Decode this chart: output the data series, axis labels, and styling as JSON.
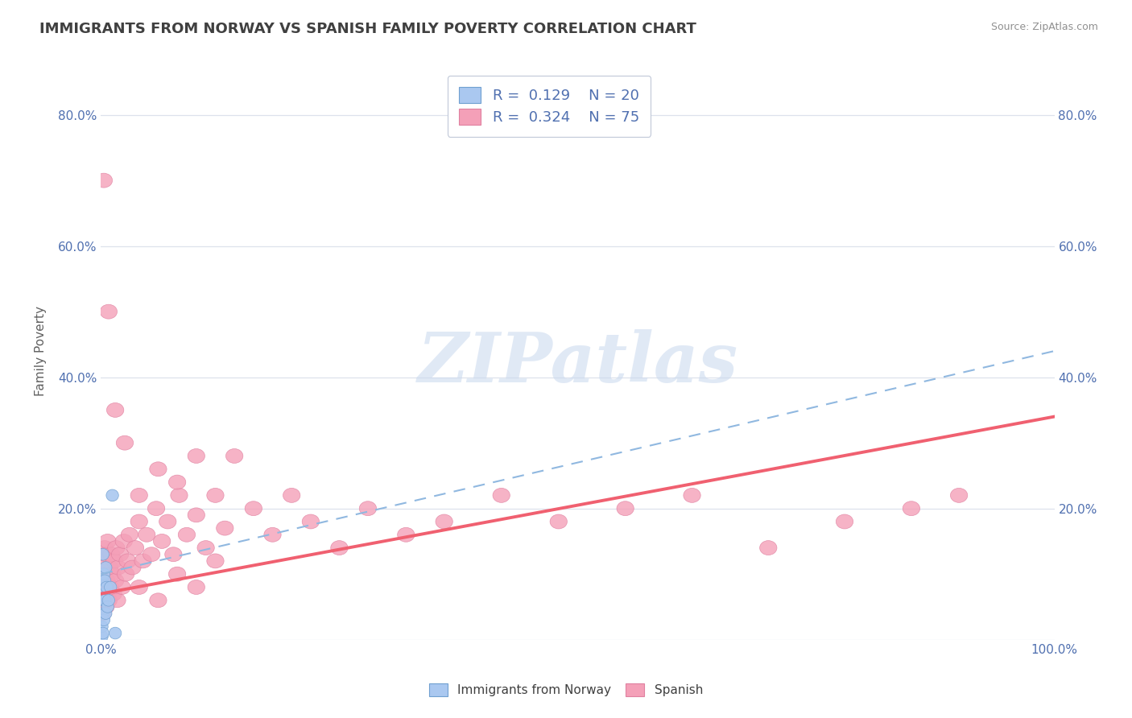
{
  "title": "IMMIGRANTS FROM NORWAY VS SPANISH FAMILY POVERTY CORRELATION CHART",
  "source": "Source: ZipAtlas.com",
  "ylabel": "Family Poverty",
  "xlim": [
    0,
    1.0
  ],
  "ylim": [
    0,
    0.88
  ],
  "norway_color": "#aac8f0",
  "norwegian_line_color": "#90b8e0",
  "spanish_color": "#f4a0b8",
  "spanish_line_color": "#f06070",
  "watermark_text": "ZIPatlas",
  "watermark_color": "#c8d8ee",
  "title_color": "#404040",
  "source_color": "#909090",
  "axis_color": "#5070b0",
  "grid_color": "#dde2ec",
  "legend_r_norway": "R =  0.129",
  "legend_n_norway": "N = 20",
  "legend_r_spanish": "R =  0.324",
  "legend_n_spanish": "N = 75",
  "norway_line_x0": 0.0,
  "norway_line_y0": 0.1,
  "norway_line_x1": 1.0,
  "norway_line_y1": 0.44,
  "spanish_line_x0": 0.0,
  "spanish_line_y0": 0.07,
  "spanish_line_x1": 1.0,
  "spanish_line_y1": 0.34,
  "norway_x": [
    0.001,
    0.001,
    0.001,
    0.002,
    0.002,
    0.002,
    0.002,
    0.003,
    0.003,
    0.003,
    0.004,
    0.004,
    0.005,
    0.005,
    0.006,
    0.007,
    0.008,
    0.01,
    0.012,
    0.015
  ],
  "norway_y": [
    0.005,
    0.02,
    0.09,
    0.01,
    0.04,
    0.06,
    0.13,
    0.03,
    0.07,
    0.1,
    0.06,
    0.09,
    0.04,
    0.11,
    0.08,
    0.05,
    0.06,
    0.08,
    0.22,
    0.01
  ],
  "spanish_x": [
    0.001,
    0.002,
    0.002,
    0.003,
    0.003,
    0.004,
    0.004,
    0.005,
    0.005,
    0.006,
    0.007,
    0.007,
    0.008,
    0.009,
    0.01,
    0.011,
    0.012,
    0.013,
    0.014,
    0.015,
    0.016,
    0.017,
    0.018,
    0.02,
    0.022,
    0.024,
    0.026,
    0.028,
    0.03,
    0.033,
    0.036,
    0.04,
    0.044,
    0.048,
    0.053,
    0.058,
    0.064,
    0.07,
    0.076,
    0.082,
    0.09,
    0.1,
    0.11,
    0.12,
    0.13,
    0.14,
    0.16,
    0.18,
    0.2,
    0.22,
    0.25,
    0.28,
    0.32,
    0.36,
    0.42,
    0.48,
    0.55,
    0.62,
    0.7,
    0.78,
    0.85,
    0.9,
    0.003,
    0.008,
    0.015,
    0.025,
    0.04,
    0.06,
    0.08,
    0.1,
    0.04,
    0.06,
    0.08,
    0.1,
    0.12
  ],
  "spanish_y": [
    0.06,
    0.04,
    0.1,
    0.06,
    0.12,
    0.08,
    0.14,
    0.05,
    0.13,
    0.09,
    0.07,
    0.15,
    0.06,
    0.11,
    0.08,
    0.13,
    0.1,
    0.07,
    0.12,
    0.09,
    0.14,
    0.06,
    0.11,
    0.13,
    0.08,
    0.15,
    0.1,
    0.12,
    0.16,
    0.11,
    0.14,
    0.18,
    0.12,
    0.16,
    0.13,
    0.2,
    0.15,
    0.18,
    0.13,
    0.22,
    0.16,
    0.19,
    0.14,
    0.22,
    0.17,
    0.28,
    0.2,
    0.16,
    0.22,
    0.18,
    0.14,
    0.2,
    0.16,
    0.18,
    0.22,
    0.18,
    0.2,
    0.22,
    0.14,
    0.18,
    0.2,
    0.22,
    0.7,
    0.5,
    0.35,
    0.3,
    0.22,
    0.26,
    0.24,
    0.28,
    0.08,
    0.06,
    0.1,
    0.08,
    0.12
  ]
}
